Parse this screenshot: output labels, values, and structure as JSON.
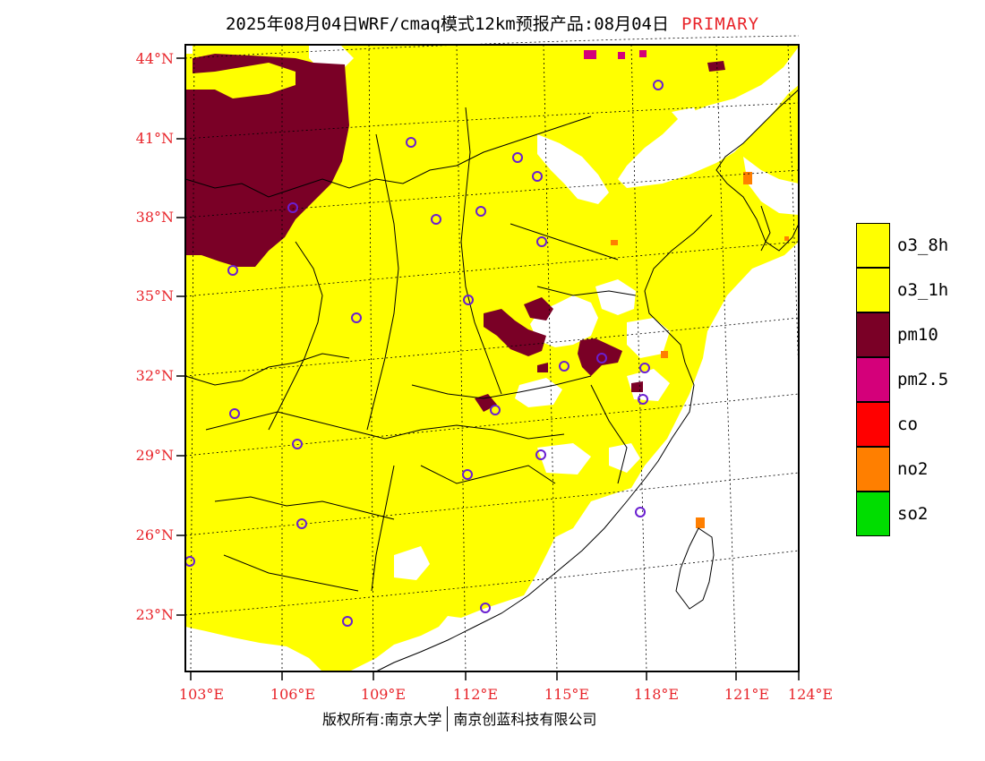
{
  "header": {
    "title": "2025年08月04日WRF/cmaq模式12km预报产品:08月04日",
    "tag": "PRIMARY"
  },
  "map": {
    "lat_labels": [
      "44°N",
      "41°N",
      "38°N",
      "35°N",
      "32°N",
      "29°N",
      "26°N",
      "23°N"
    ],
    "lon_labels": [
      "103°E",
      "106°E",
      "109°E",
      "112°E",
      "115°E",
      "118°E",
      "121°E",
      "124°E"
    ]
  },
  "legend": {
    "items": [
      {
        "label": "o3_8h",
        "color": "#ffff00"
      },
      {
        "label": "o3_1h",
        "color": "#ffff00"
      },
      {
        "label": "pm10",
        "color": "#7a0026"
      },
      {
        "label": "pm2.5",
        "color": "#d4007a"
      },
      {
        "label": "co",
        "color": "#ff0000"
      },
      {
        "label": "no2",
        "color": "#ff7f00"
      },
      {
        "label": "so2",
        "color": "#00dd00"
      }
    ]
  },
  "footer": {
    "left": "版权所有:南京大学",
    "right": "南京创蓝科技有限公司"
  }
}
